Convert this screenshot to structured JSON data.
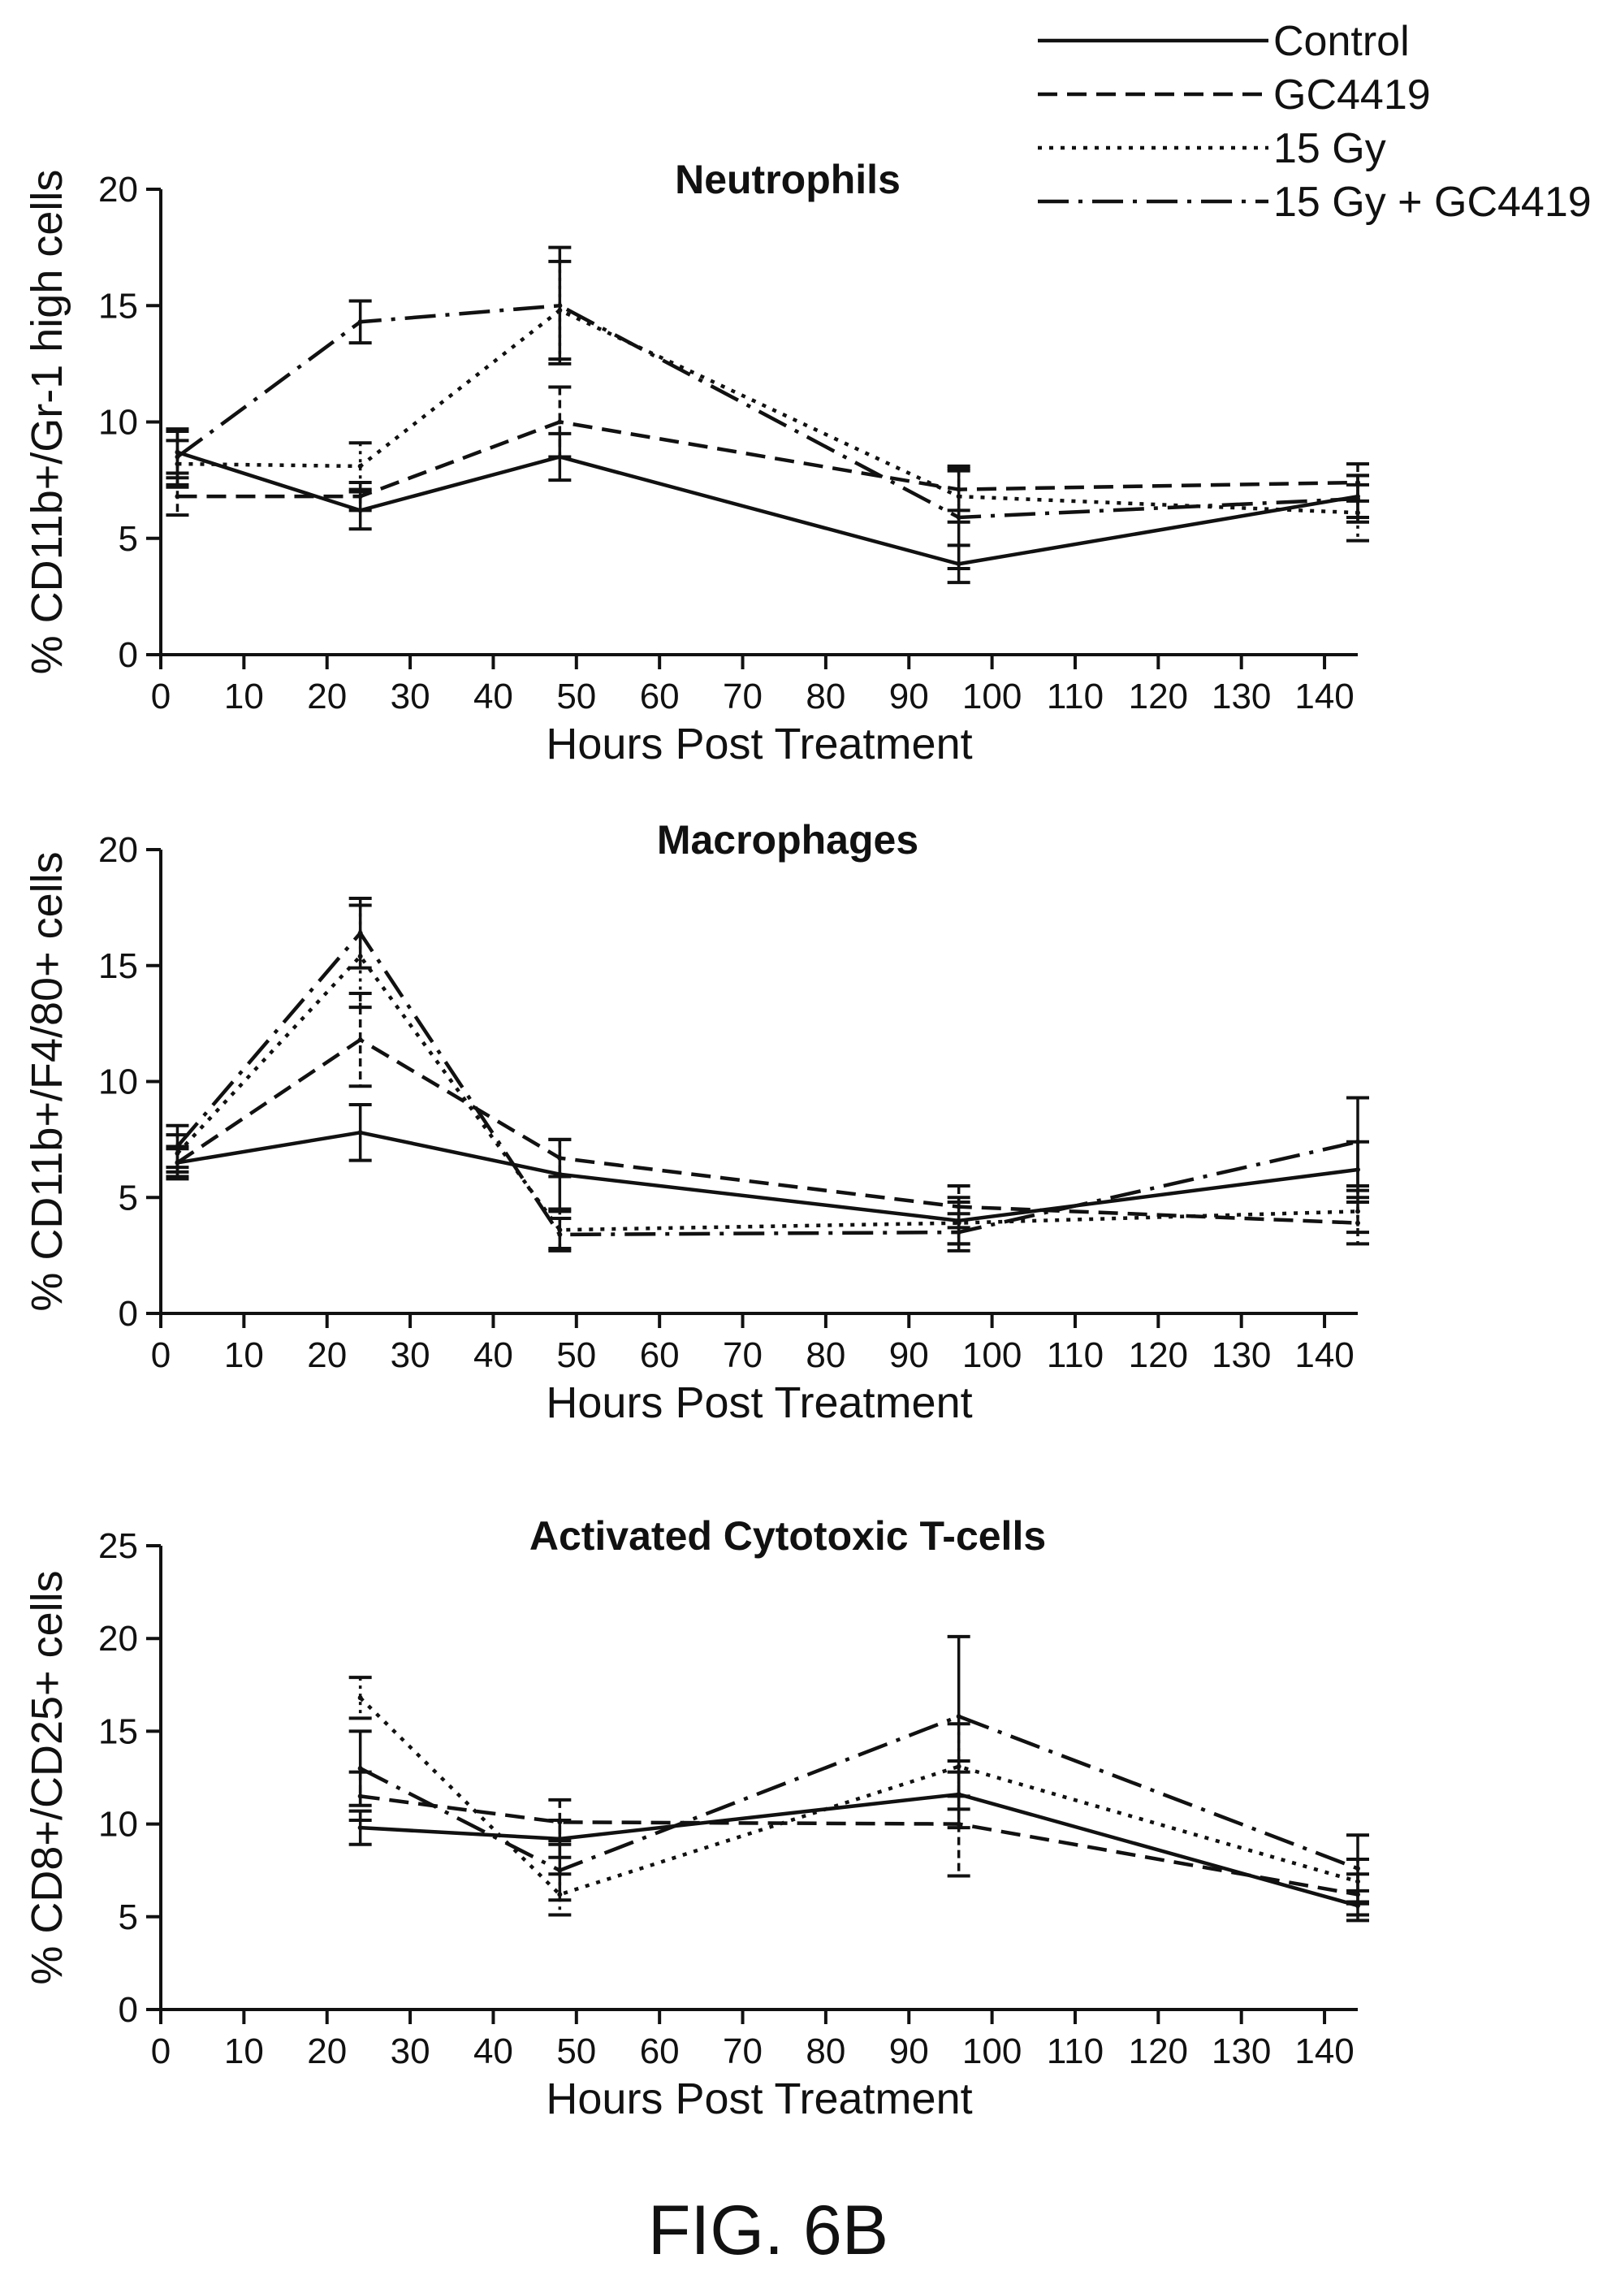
{
  "legend": [
    {
      "name": "Control",
      "style": "solid"
    },
    {
      "name": "GC4419",
      "style": "dashed"
    },
    {
      "name": "15 Gy",
      "style": "dotted"
    },
    {
      "name": "15 Gy + GC4419",
      "style": "dashdot"
    }
  ],
  "figure_caption": "FIG. 6B",
  "chart_data": [
    {
      "type": "line",
      "title": "Neutrophils",
      "xlabel": "Hours Post Treatment",
      "ylabel": "% CD11b+/Gr-1 high cells",
      "xlim": [
        0,
        144
      ],
      "ylim": [
        0,
        20
      ],
      "xticks": [
        0,
        10,
        20,
        30,
        40,
        50,
        60,
        70,
        80,
        90,
        100,
        110,
        120,
        130,
        140
      ],
      "yticks": [
        0,
        5,
        10,
        15,
        20
      ],
      "x": [
        2,
        24,
        48,
        96,
        144
      ],
      "series": [
        {
          "name": "Control",
          "style": "solid",
          "values": [
            8.7,
            6.2,
            8.5,
            3.9,
            6.8
          ],
          "errors": [
            0.9,
            0.8,
            1.0,
            0.8,
            0.9
          ]
        },
        {
          "name": "GC4419",
          "style": "dashed",
          "values": [
            6.8,
            6.8,
            10.0,
            7.1,
            7.4
          ],
          "errors": [
            0.8,
            0.6,
            1.5,
            0.9,
            0.8
          ]
        },
        {
          "name": "15 Gy",
          "style": "dotted",
          "values": [
            8.2,
            8.1,
            14.8,
            6.8,
            6.1
          ],
          "errors": [
            1.0,
            1.0,
            2.1,
            1.1,
            1.2
          ]
        },
        {
          "name": "15 Gy + GC4419",
          "style": "dashdot",
          "values": [
            8.5,
            14.3,
            15.0,
            5.9,
            6.7
          ],
          "errors": [
            1.2,
            0.9,
            2.5,
            2.2,
            1.0
          ]
        }
      ]
    },
    {
      "type": "line",
      "title": "Macrophages",
      "xlabel": "Hours Post Treatment",
      "ylabel": "% CD11b+/F4/80+ cells",
      "xlim": [
        0,
        144
      ],
      "ylim": [
        0,
        20
      ],
      "xticks": [
        0,
        10,
        20,
        30,
        40,
        50,
        60,
        70,
        80,
        90,
        100,
        110,
        120,
        130,
        140
      ],
      "yticks": [
        0,
        5,
        10,
        15,
        20
      ],
      "x": [
        2,
        24,
        48,
        96,
        144
      ],
      "series": [
        {
          "name": "Control",
          "style": "solid",
          "values": [
            6.5,
            7.8,
            6.0,
            4.0,
            6.2
          ],
          "errors": [
            0.6,
            1.2,
            1.5,
            1.0,
            1.2
          ]
        },
        {
          "name": "GC4419",
          "style": "dashed",
          "values": [
            6.5,
            11.8,
            6.7,
            4.6,
            3.9
          ],
          "errors": [
            0.7,
            2.0,
            0.8,
            0.9,
            0.9
          ]
        },
        {
          "name": "15 Gy",
          "style": "dotted",
          "values": [
            6.9,
            15.4,
            3.6,
            3.9,
            4.4
          ],
          "errors": [
            0.8,
            2.2,
            0.8,
            0.9,
            0.9
          ]
        },
        {
          "name": "15 Gy + GC4419",
          "style": "dashdot",
          "values": [
            7.2,
            16.4,
            3.4,
            3.5,
            7.4
          ],
          "errors": [
            0.9,
            1.5,
            0.7,
            0.8,
            1.9
          ]
        }
      ]
    },
    {
      "type": "line",
      "title": "Activated Cytotoxic T-cells",
      "xlabel": "Hours Post Treatment",
      "ylabel": "% CD8+/CD25+ cells",
      "xlim": [
        0,
        144
      ],
      "ylim": [
        0,
        25
      ],
      "xticks": [
        0,
        10,
        20,
        30,
        40,
        50,
        60,
        70,
        80,
        90,
        100,
        110,
        120,
        130,
        140
      ],
      "yticks": [
        0,
        5,
        10,
        15,
        20,
        25
      ],
      "x": [
        24,
        48,
        96,
        144
      ],
      "series": [
        {
          "name": "Control",
          "style": "solid",
          "values": [
            9.8,
            9.2,
            11.6,
            5.6
          ],
          "errors": [
            0.9,
            1.0,
            1.8,
            0.8
          ]
        },
        {
          "name": "GC4419",
          "style": "dashed",
          "values": [
            11.5,
            10.1,
            10.0,
            6.2
          ],
          "errors": [
            1.3,
            1.2,
            2.8,
            1.1
          ]
        },
        {
          "name": "15 Gy",
          "style": "dotted",
          "values": [
            16.8,
            6.2,
            13.1,
            6.9
          ],
          "errors": [
            1.1,
            1.1,
            2.3,
            1.2
          ]
        },
        {
          "name": "15 Gy + GC4419",
          "style": "dashdot",
          "values": [
            13.0,
            7.5,
            15.8,
            7.6
          ],
          "errors": [
            2.0,
            1.6,
            4.3,
            1.8
          ]
        }
      ]
    }
  ]
}
